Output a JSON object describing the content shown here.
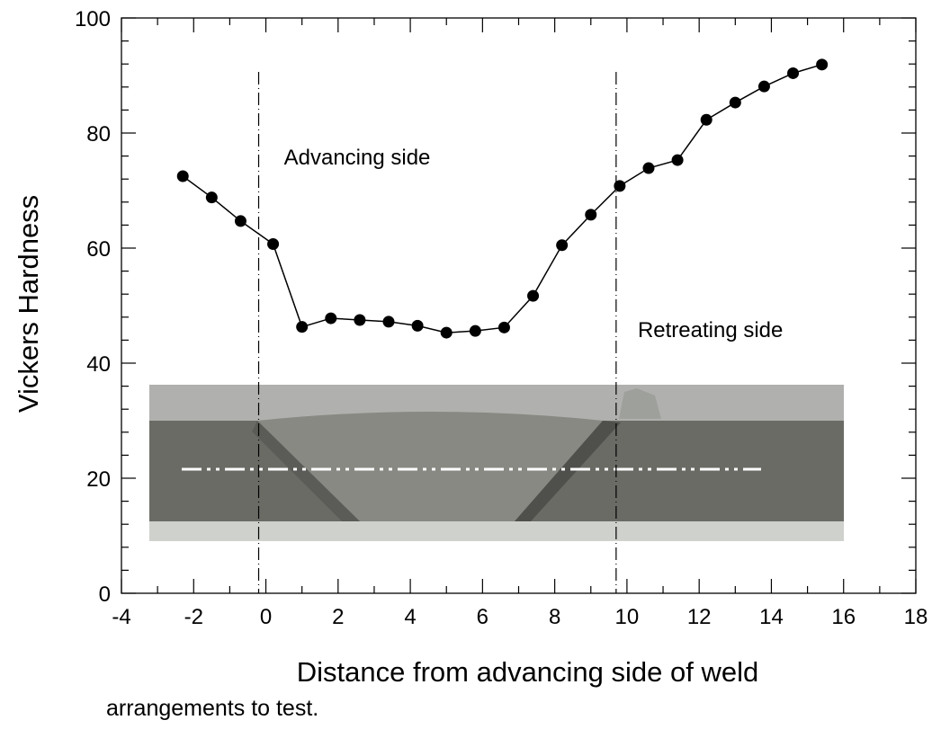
{
  "chart_data": {
    "type": "scatter",
    "xlabel": "Distance from advancing side of weld",
    "ylabel": "Vickers Hardness",
    "xlim": [
      -4,
      18
    ],
    "ylim": [
      0,
      100
    ],
    "xticks": [
      "-4",
      "-2",
      "0",
      "2",
      "4",
      "6",
      "8",
      "10",
      "12",
      "14",
      "16",
      "18"
    ],
    "yticks": [
      "0",
      "20",
      "40",
      "60",
      "80",
      "100"
    ],
    "grid": false,
    "series": [
      {
        "x": [
          -2.3,
          -1.5,
          -0.7,
          0.2,
          1.0,
          1.8,
          2.6,
          3.4,
          4.2,
          5.0,
          5.8,
          6.6,
          7.4,
          8.2,
          9.0,
          9.8,
          10.6,
          11.4,
          12.2,
          13.0,
          13.8,
          14.6,
          15.4
        ],
        "y": [
          72.5,
          68.8,
          64.7,
          60.7,
          46.3,
          47.8,
          47.5,
          47.2,
          46.5,
          45.3,
          45.6,
          46.2,
          51.7,
          60.5,
          65.8,
          70.8,
          73.9,
          75.3,
          82.3,
          85.3,
          88.1,
          90.4,
          91.9
        ]
      }
    ],
    "vlines": [
      -0.2,
      9.7
    ],
    "annotations": [
      {
        "text": "Advancing side",
        "x": 0.5,
        "y": 74.5
      },
      {
        "text": "Retreating side",
        "x": 10.3,
        "y": 44.5
      }
    ]
  },
  "photo": {
    "name": "weld-cross-section-photo",
    "colors": {
      "upper_bg": "#b2b2b0",
      "metal_dark": "#6b6c66",
      "nugget": "#8a8c84",
      "bottom_strip": "#c9cbc7",
      "centerline": "#ffffff"
    }
  },
  "caption": "arrangements to test."
}
